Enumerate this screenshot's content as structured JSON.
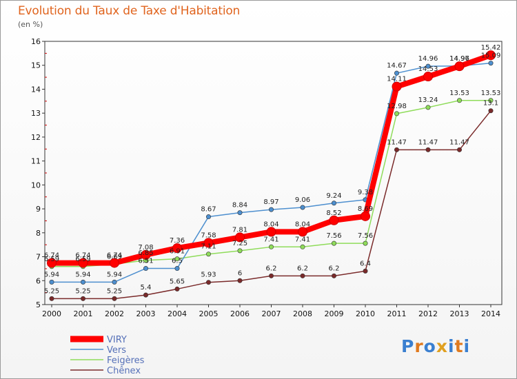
{
  "header": {
    "title": "Evolution du Taux de Taxe d'Habitation",
    "unit": "(en %)"
  },
  "logo": {
    "text": "Proxiti",
    "colors": [
      "#3a7fd0",
      "#e07a1e",
      "#3a7fd0",
      "#e0a020",
      "#3a7fd0",
      "#e07a1e",
      "#3a7fd0"
    ]
  },
  "chart_data": {
    "type": "line",
    "x": [
      "2000",
      "2001",
      "2002",
      "2003",
      "2004",
      "2005",
      "2006",
      "2007",
      "2008",
      "2009",
      "2010",
      "2011",
      "2012",
      "2013",
      "2014"
    ],
    "ylim": [
      5,
      16
    ],
    "yticks": [
      5,
      6,
      7,
      8,
      9,
      10,
      11,
      12,
      13,
      14,
      15,
      16
    ],
    "grid": false,
    "legend": "bottom-left",
    "series": [
      {
        "name": "VIRY",
        "color": "#ff0000",
        "values": [
          6.74,
          6.74,
          6.74,
          7.08,
          7.36,
          7.58,
          7.81,
          8.04,
          8.04,
          8.52,
          8.69,
          14.11,
          14.53,
          14.96,
          15.42
        ],
        "labels": [
          "6.74",
          "6.74",
          "6.74",
          "7.08",
          "7.36",
          "7.58",
          "7.81",
          "8.04",
          "8.04",
          "8.52",
          "8.69",
          "14.11",
          "14.53",
          "14.96",
          "15.42"
        ]
      },
      {
        "name": "Vers",
        "color": "#4d8fcf",
        "values": [
          5.94,
          5.94,
          5.94,
          6.51,
          6.51,
          8.67,
          8.84,
          8.97,
          9.06,
          9.24,
          9.38,
          14.67,
          14.96,
          14.97,
          15.09
        ],
        "labels": [
          "5.94",
          "5.94",
          "5.94",
          "6.51",
          "6.5",
          "8.67",
          "8.84",
          "8.97",
          "9.06",
          "9.24",
          "9.38",
          "14.67",
          "14.96",
          "14.97",
          "15.09"
        ]
      },
      {
        "name": "Feigères",
        "color": "#8fdc5a",
        "values": [
          6.59,
          6.59,
          6.69,
          6.85,
          6.91,
          7.11,
          7.25,
          7.41,
          7.41,
          7.56,
          7.56,
          12.98,
          13.24,
          13.53,
          13.53
        ],
        "labels": [
          "6.59",
          "6.59",
          "6.69",
          "6.85",
          "6.91",
          "7.11",
          "7.25",
          "7.41",
          "7.41",
          "7.56",
          "7.56",
          "12.98",
          "13.24",
          "13.53",
          "13.53"
        ]
      },
      {
        "name": "Chênex",
        "color": "#7a2a2a",
        "values": [
          5.25,
          5.25,
          5.25,
          5.4,
          5.65,
          5.93,
          6,
          6.2,
          6.2,
          6.2,
          6.4,
          11.47,
          11.47,
          11.47,
          13.1
        ],
        "labels": [
          "5.25",
          "5.25",
          "5.25",
          "5.4",
          "5.65",
          "5.93",
          "6",
          "6.2",
          "6.2",
          "6.2",
          "6.4",
          "11.47",
          "11.47",
          "11.47",
          "13.1"
        ]
      }
    ]
  }
}
